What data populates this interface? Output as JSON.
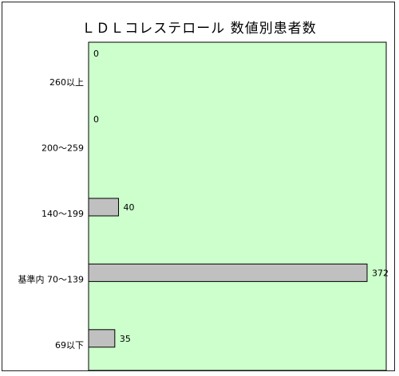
{
  "chart_data": {
    "type": "bar",
    "orientation": "horizontal",
    "title": "ＬＤＬコレステロール 数値別患者数",
    "categories": [
      "260以上",
      "200～259",
      "140～199",
      "基準内 70～139",
      "69以下"
    ],
    "values": [
      0,
      0,
      40,
      372,
      35
    ],
    "xlim": [
      0,
      372
    ],
    "grid": false,
    "legend": "none",
    "colors": {
      "plot_background": "#ccffcc",
      "bar_fill": "#c0c0c0",
      "bar_stroke": "#000000"
    }
  }
}
